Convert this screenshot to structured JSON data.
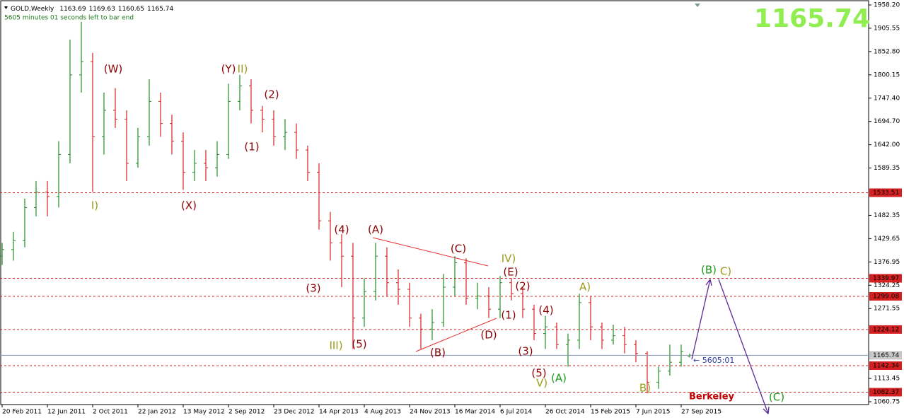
{
  "chart_data": {
    "type": "ohlc",
    "symbol": "GOLD,Weekly",
    "countdown": "5605 minutes 01 seconds left to bar end",
    "timer": "5605:01",
    "watermark": "Berkeley",
    "up_color": "#1e8c1e",
    "down_color": "#d42020",
    "xlim": [
      -0.75,
      306.25
    ],
    "ylim": [
      1054.35,
      1969.4
    ],
    "xticks": [
      {
        "value": 0,
        "label": "20 Feb 2011"
      },
      {
        "value": 16,
        "label": "12 Jun 2011"
      },
      {
        "value": 32,
        "label": "2 Oct 2011"
      },
      {
        "value": 48,
        "label": "22 Jan 2012"
      },
      {
        "value": 64,
        "label": "13 May 2012"
      },
      {
        "value": 80,
        "label": "2 Sep 2012"
      },
      {
        "value": 96,
        "label": "23 Dec 2012"
      },
      {
        "value": 112,
        "label": "14 Apr 2013"
      },
      {
        "value": 128,
        "label": "4 Aug 2013"
      },
      {
        "value": 144,
        "label": "24 Nov 2013"
      },
      {
        "value": 160,
        "label": "16 Mar 2014"
      },
      {
        "value": 176,
        "label": "6 Jul 2014"
      },
      {
        "value": 192,
        "label": "26 Oct 2014"
      },
      {
        "value": 208,
        "label": "15 Feb 2015"
      },
      {
        "value": 224,
        "label": "7 Jun 2015"
      },
      {
        "value": 240,
        "label": "27 Sep 2015"
      }
    ],
    "yticks": [
      {
        "value": 1958.2,
        "label": "1958.20"
      },
      1905.55,
      {
        "value": 1852.8,
        "label": "1852.80"
      },
      1800.15,
      {
        "value": 1747.4,
        "label": "1747.40"
      },
      {
        "value": 1694.7,
        "label": "1694.70"
      },
      {
        "value": 1642,
        "label": "1642.00"
      },
      1589.35,
      1482.35,
      1429.65,
      {
        "value": 1376.95,
        "label": "1376.95"
      },
      1324.25,
      1271.55,
      1113.45,
      1060.75
    ],
    "levels": [
      {
        "value": 1533.51,
        "color": "#d42020"
      },
      {
        "value": 1339.97,
        "color": "#d42020"
      },
      {
        "value": 1299.08,
        "color": "#d42020"
      },
      {
        "value": 1224.12,
        "color": "#d42020"
      },
      {
        "value": 1142.34,
        "color": "#d42020"
      },
      {
        "value": 1082.37,
        "color": "#d42020"
      }
    ],
    "x": [
      0,
      4,
      8,
      12,
      16,
      20,
      24,
      28,
      32,
      36,
      40,
      44,
      48,
      52,
      56,
      60,
      64,
      68,
      72,
      76,
      80,
      84,
      88,
      92,
      96,
      100,
      104,
      108,
      112,
      116,
      120,
      124,
      128,
      132,
      136,
      140,
      144,
      148,
      152,
      156,
      160,
      164,
      168,
      172,
      176,
      180,
      184,
      188,
      192,
      196,
      200,
      204,
      208,
      212,
      216,
      220,
      224,
      228,
      232,
      236,
      240,
      243
    ],
    "open": [
      1390,
      1405,
      1425,
      1500,
      1535,
      1525,
      1620,
      1800,
      1830,
      1660,
      1720,
      1700,
      1600,
      1660,
      1740,
      1690,
      1650,
      1580,
      1600,
      1590,
      1620,
      1740,
      1775,
      1720,
      1700,
      1660,
      1670,
      1630,
      1580,
      1470,
      1420,
      1390,
      1250,
      1310,
      1390,
      1330,
      1315,
      1250,
      1225,
      1240,
      1320,
      1375,
      1295,
      1300,
      1270,
      1330,
      1305,
      1270,
      1215,
      1230,
      1190,
      1200,
      1285,
      1230,
      1200,
      1210,
      1190,
      1170,
      1105,
      1130,
      1150,
      1163.69
    ],
    "high": [
      1420,
      1445,
      1520,
      1560,
      1560,
      1650,
      1880,
      1920,
      1850,
      1760,
      1770,
      1720,
      1680,
      1790,
      1760,
      1710,
      1670,
      1630,
      1630,
      1650,
      1780,
      1800,
      1790,
      1730,
      1720,
      1700,
      1690,
      1640,
      1600,
      1490,
      1440,
      1420,
      1340,
      1420,
      1410,
      1360,
      1330,
      1260,
      1270,
      1350,
      1390,
      1385,
      1330,
      1320,
      1345,
      1340,
      1320,
      1280,
      1255,
      1240,
      1215,
      1305,
      1300,
      1240,
      1235,
      1230,
      1200,
      1175,
      1140,
      1190,
      1190,
      1169.63
    ],
    "low": [
      1370,
      1380,
      1410,
      1480,
      1480,
      1500,
      1600,
      1760,
      1535,
      1620,
      1680,
      1560,
      1590,
      1640,
      1660,
      1620,
      1540,
      1560,
      1560,
      1570,
      1610,
      1720,
      1690,
      1670,
      1640,
      1630,
      1610,
      1560,
      1450,
      1380,
      1320,
      1180,
      1230,
      1290,
      1300,
      1280,
      1230,
      1180,
      1200,
      1230,
      1300,
      1280,
      1270,
      1250,
      1250,
      1290,
      1250,
      1200,
      1180,
      1180,
      1140,
      1180,
      1200,
      1180,
      1190,
      1170,
      1150,
      1080,
      1090,
      1120,
      1140,
      1160.65
    ],
    "close": [
      1405,
      1425,
      1500,
      1535,
      1525,
      1620,
      1800,
      1830,
      1660,
      1720,
      1700,
      1600,
      1660,
      1740,
      1690,
      1650,
      1580,
      1600,
      1590,
      1620,
      1740,
      1775,
      1720,
      1700,
      1660,
      1670,
      1630,
      1580,
      1470,
      1420,
      1390,
      1250,
      1310,
      1390,
      1330,
      1315,
      1250,
      1225,
      1240,
      1320,
      1375,
      1295,
      1300,
      1270,
      1330,
      1305,
      1270,
      1215,
      1230,
      1190,
      1200,
      1285,
      1230,
      1200,
      1210,
      1190,
      1170,
      1105,
      1130,
      1150,
      1175,
      1165.74
    ],
    "annotations": [
      {
        "text": "(W)",
        "color": "#8b0000"
      },
      {
        "text": "I)",
        "color": "#9b9b1a"
      },
      {
        "text": "(X)",
        "color": "#8b0000"
      },
      {
        "text": "(Y)",
        "color": "#8b0000"
      },
      {
        "text": "II)",
        "color": "#9b9b1a"
      },
      {
        "text": "(2)",
        "color": "#8b0000"
      },
      {
        "text": "(1)",
        "color": "#8b0000"
      },
      {
        "text": "(3)",
        "color": "#8b0000"
      },
      {
        "text": "(4)",
        "color": "#8b0000"
      },
      {
        "text": "III)",
        "color": "#9b9b1a"
      },
      {
        "text": "(5)",
        "color": "#8b0000"
      },
      {
        "text": "(A)",
        "color": "#8b0000"
      },
      {
        "text": "(B)",
        "color": "#8b0000"
      },
      {
        "text": "(C)",
        "color": "#8b0000"
      },
      {
        "text": "(D)",
        "color": "#8b0000"
      },
      {
        "text": "IV)",
        "color": "#9b9b1a"
      },
      {
        "text": "(E)",
        "color": "#8b0000"
      },
      {
        "text": "(2)",
        "color": "#8b0000"
      },
      {
        "text": "(1)",
        "color": "#8b0000"
      },
      {
        "text": "(4)",
        "color": "#8b0000"
      },
      {
        "text": "(3)",
        "color": "#8b0000"
      },
      {
        "text": "(5)",
        "color": "#8b0000"
      },
      {
        "text": "V)",
        "color": "#9b9b1a"
      },
      {
        "text": "(A)",
        "color": "#1a9a1a"
      },
      {
        "text": "A)",
        "color": "#9b9b1a"
      },
      {
        "text": "B)",
        "color": "#9b9b1a"
      },
      {
        "text": "(B)",
        "color": "#1a9a1a"
      },
      {
        "text": "C)",
        "color": "#9b9b1a"
      },
      {
        "text": "(C)",
        "color": "#1a9a1a"
      }
    ]
  }
}
